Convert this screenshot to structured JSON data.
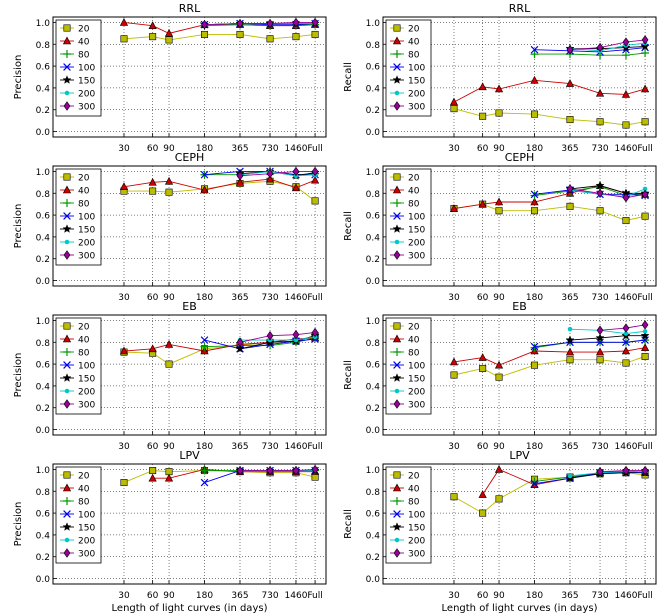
{
  "figure": {
    "xlabel": "Length of light curves (in days)"
  },
  "colors": {
    "20": "#bdbd00",
    "40": "#cc0000",
    "80": "#009900",
    "100": "#0000ee",
    "150": "#000000",
    "200": "#00c8c8",
    "300": "#990099"
  },
  "chart_data": [
    {
      "type": "line",
      "title": "RRL",
      "ylabel": "Precision",
      "xlabel": "",
      "categories": [
        "30",
        "60",
        "90",
        "180",
        "365",
        "730",
        "1460",
        "Full"
      ],
      "x": [
        30,
        60,
        90,
        180,
        365,
        730,
        1460,
        2500
      ],
      "ylim": [
        -0.05,
        1.05
      ],
      "yticks": [
        "0.0",
        "0.2",
        "0.4",
        "0.6",
        "0.8",
        "1.0"
      ],
      "grid": true,
      "legend": "upper-left",
      "series": [
        {
          "name": "20",
          "values": [
            0.85,
            0.87,
            0.84,
            0.89,
            0.89,
            0.85,
            0.87,
            0.89
          ]
        },
        {
          "name": "40",
          "values": [
            1.0,
            0.97,
            0.9,
            0.98,
            0.98,
            0.97,
            0.97,
            0.98
          ]
        },
        {
          "name": "80",
          "values": [
            null,
            null,
            null,
            0.97,
            0.98,
            0.97,
            0.98,
            0.98
          ]
        },
        {
          "name": "100",
          "values": [
            null,
            null,
            null,
            0.98,
            0.99,
            0.98,
            0.98,
            0.99
          ]
        },
        {
          "name": "150",
          "values": [
            null,
            null,
            null,
            0.98,
            0.99,
            0.99,
            0.99,
            0.99
          ]
        },
        {
          "name": "200",
          "values": [
            null,
            null,
            null,
            0.98,
            0.99,
            0.99,
            0.99,
            0.99
          ]
        },
        {
          "name": "300",
          "values": [
            null,
            null,
            null,
            0.98,
            0.99,
            0.99,
            1.0,
            1.0
          ]
        }
      ]
    },
    {
      "type": "line",
      "title": "RRL",
      "ylabel": "Recall",
      "xlabel": "",
      "categories": [
        "30",
        "60",
        "90",
        "180",
        "365",
        "730",
        "1460",
        "Full"
      ],
      "x": [
        30,
        60,
        90,
        180,
        365,
        730,
        1460,
        2500
      ],
      "ylim": [
        -0.05,
        1.05
      ],
      "yticks": [
        "0.0",
        "0.2",
        "0.4",
        "0.6",
        "0.8",
        "1.0"
      ],
      "grid": true,
      "legend": "upper-left",
      "series": [
        {
          "name": "20",
          "values": [
            0.21,
            0.14,
            0.17,
            0.16,
            0.11,
            0.09,
            0.06,
            0.09
          ]
        },
        {
          "name": "40",
          "values": [
            0.27,
            0.41,
            0.39,
            0.47,
            0.44,
            0.35,
            0.34,
            0.39
          ]
        },
        {
          "name": "80",
          "values": [
            null,
            null,
            null,
            0.71,
            0.71,
            0.7,
            0.7,
            0.72
          ]
        },
        {
          "name": "100",
          "values": [
            null,
            null,
            null,
            0.75,
            0.74,
            0.73,
            0.75,
            0.77
          ]
        },
        {
          "name": "150",
          "values": [
            null,
            null,
            null,
            null,
            0.76,
            0.76,
            0.77,
            0.78
          ]
        },
        {
          "name": "200",
          "values": [
            null,
            null,
            null,
            null,
            0.76,
            0.74,
            0.79,
            0.81
          ]
        },
        {
          "name": "300",
          "values": [
            null,
            null,
            null,
            null,
            0.75,
            0.77,
            0.82,
            0.84
          ]
        }
      ]
    },
    {
      "type": "line",
      "title": "CEPH",
      "ylabel": "Precision",
      "xlabel": "",
      "categories": [
        "30",
        "60",
        "90",
        "180",
        "365",
        "730",
        "1460",
        "Full"
      ],
      "x": [
        30,
        60,
        90,
        180,
        365,
        730,
        1460,
        2500
      ],
      "ylim": [
        -0.05,
        1.05
      ],
      "yticks": [
        "0.0",
        "0.2",
        "0.4",
        "0.6",
        "0.8",
        "1.0"
      ],
      "grid": true,
      "legend": "upper-left",
      "series": [
        {
          "name": "20",
          "values": [
            0.82,
            0.82,
            0.81,
            0.84,
            0.89,
            0.91,
            0.86,
            0.73
          ]
        },
        {
          "name": "40",
          "values": [
            0.86,
            0.9,
            0.91,
            0.83,
            0.9,
            0.93,
            0.85,
            0.92
          ]
        },
        {
          "name": "80",
          "values": [
            null,
            null,
            null,
            0.97,
            0.97,
            1.0,
            0.97,
            0.98
          ]
        },
        {
          "name": "100",
          "values": [
            null,
            null,
            null,
            0.97,
            1.0,
            1.0,
            0.97,
            0.97
          ]
        },
        {
          "name": "150",
          "values": [
            null,
            null,
            null,
            null,
            0.98,
            1.0,
            0.96,
            0.99
          ]
        },
        {
          "name": "200",
          "values": [
            null,
            null,
            null,
            null,
            0.97,
            1.0,
            0.96,
            0.97
          ]
        },
        {
          "name": "300",
          "values": [
            null,
            null,
            null,
            null,
            0.96,
            0.98,
            1.0,
            1.0
          ]
        }
      ]
    },
    {
      "type": "line",
      "title": "CEPH",
      "ylabel": "Recall",
      "xlabel": "",
      "categories": [
        "30",
        "60",
        "90",
        "180",
        "365",
        "730",
        "1460",
        "Full"
      ],
      "x": [
        30,
        60,
        90,
        180,
        365,
        730,
        1460,
        2500
      ],
      "ylim": [
        -0.05,
        1.05
      ],
      "yticks": [
        "0.0",
        "0.2",
        "0.4",
        "0.6",
        "0.8",
        "1.0"
      ],
      "grid": true,
      "legend": "upper-left",
      "series": [
        {
          "name": "20",
          "values": [
            0.66,
            0.7,
            0.64,
            0.64,
            0.68,
            0.64,
            0.55,
            0.59
          ]
        },
        {
          "name": "40",
          "values": [
            0.66,
            0.7,
            0.72,
            0.72,
            0.8,
            0.87,
            0.8,
            0.79
          ]
        },
        {
          "name": "80",
          "values": [
            null,
            null,
            null,
            0.78,
            0.82,
            0.86,
            0.78,
            0.8
          ]
        },
        {
          "name": "100",
          "values": [
            null,
            null,
            null,
            0.79,
            0.83,
            0.79,
            0.79,
            0.78
          ]
        },
        {
          "name": "150",
          "values": [
            null,
            null,
            null,
            null,
            0.84,
            0.87,
            0.8,
            0.8
          ]
        },
        {
          "name": "200",
          "values": [
            null,
            null,
            null,
            null,
            0.83,
            0.79,
            0.77,
            0.84
          ]
        },
        {
          "name": "300",
          "values": [
            null,
            null,
            null,
            null,
            0.84,
            0.8,
            0.76,
            0.79
          ]
        }
      ]
    },
    {
      "type": "line",
      "title": "EB",
      "ylabel": "Precision",
      "xlabel": "",
      "categories": [
        "30",
        "60",
        "90",
        "180",
        "365",
        "730",
        "1460",
        "Full"
      ],
      "x": [
        30,
        60,
        90,
        180,
        365,
        730,
        1460,
        2500
      ],
      "ylim": [
        -0.05,
        1.05
      ],
      "yticks": [
        "0.0",
        "0.2",
        "0.4",
        "0.6",
        "0.8",
        "1.0"
      ],
      "grid": true,
      "legend": "upper-left",
      "series": [
        {
          "name": "20",
          "values": [
            0.71,
            0.7,
            0.6,
            0.74,
            0.77,
            0.8,
            0.81,
            0.86
          ]
        },
        {
          "name": "40",
          "values": [
            0.72,
            0.74,
            0.78,
            0.72,
            0.78,
            0.8,
            0.83,
            0.84
          ]
        },
        {
          "name": "80",
          "values": [
            null,
            null,
            null,
            0.76,
            0.77,
            0.77,
            0.8,
            0.84
          ]
        },
        {
          "name": "100",
          "values": [
            null,
            null,
            null,
            0.82,
            0.74,
            0.78,
            0.81,
            0.83
          ]
        },
        {
          "name": "150",
          "values": [
            null,
            null,
            null,
            null,
            0.74,
            0.8,
            0.81,
            0.86
          ]
        },
        {
          "name": "200",
          "values": [
            null,
            null,
            null,
            null,
            0.82,
            0.82,
            0.82,
            0.85
          ]
        },
        {
          "name": "300",
          "values": [
            null,
            null,
            null,
            null,
            0.8,
            0.86,
            0.87,
            0.89
          ]
        }
      ]
    },
    {
      "type": "line",
      "title": "EB",
      "ylabel": "Recall",
      "xlabel": "",
      "categories": [
        "30",
        "60",
        "90",
        "180",
        "365",
        "730",
        "1460",
        "Full"
      ],
      "x": [
        30,
        60,
        90,
        180,
        365,
        730,
        1460,
        2500
      ],
      "ylim": [
        -0.05,
        1.05
      ],
      "yticks": [
        "0.0",
        "0.2",
        "0.4",
        "0.6",
        "0.8",
        "1.0"
      ],
      "grid": true,
      "legend": "upper-left",
      "series": [
        {
          "name": "20",
          "values": [
            0.5,
            0.56,
            0.48,
            0.59,
            0.64,
            0.64,
            0.61,
            0.67
          ]
        },
        {
          "name": "40",
          "values": [
            0.62,
            0.66,
            0.59,
            0.72,
            0.71,
            0.71,
            0.72,
            0.75
          ]
        },
        {
          "name": "80",
          "values": [
            null,
            null,
            null,
            0.75,
            0.8,
            0.8,
            0.8,
            0.82
          ]
        },
        {
          "name": "100",
          "values": [
            null,
            null,
            null,
            0.76,
            0.8,
            0.8,
            0.8,
            0.82
          ]
        },
        {
          "name": "150",
          "values": [
            null,
            null,
            null,
            null,
            0.82,
            0.84,
            0.86,
            0.86
          ]
        },
        {
          "name": "200",
          "values": [
            null,
            null,
            null,
            null,
            0.92,
            0.91,
            0.88,
            0.9
          ]
        },
        {
          "name": "300",
          "values": [
            null,
            null,
            null,
            null,
            null,
            0.91,
            0.93,
            0.96
          ]
        }
      ]
    },
    {
      "type": "line",
      "title": "LPV",
      "ylabel": "Precision",
      "xlabel": "Length of light curves (in days)",
      "categories": [
        "30",
        "60",
        "90",
        "180",
        "365",
        "730",
        "1460",
        "Full"
      ],
      "x": [
        30,
        60,
        90,
        180,
        365,
        730,
        1460,
        2500
      ],
      "ylim": [
        -0.05,
        1.05
      ],
      "yticks": [
        "0.0",
        "0.2",
        "0.4",
        "0.6",
        "0.8",
        "1.0"
      ],
      "grid": true,
      "legend": "upper-left",
      "series": [
        {
          "name": "20",
          "values": [
            0.88,
            0.99,
            0.98,
            0.99,
            0.98,
            0.97,
            0.97,
            0.93
          ]
        },
        {
          "name": "40",
          "values": [
            null,
            0.92,
            0.92,
            1.0,
            0.98,
            0.98,
            0.98,
            0.98
          ]
        },
        {
          "name": "80",
          "values": [
            null,
            null,
            null,
            0.99,
            0.99,
            0.99,
            0.99,
            0.99
          ]
        },
        {
          "name": "100",
          "values": [
            null,
            null,
            null,
            0.88,
            0.99,
            0.99,
            0.99,
            0.99
          ]
        },
        {
          "name": "150",
          "values": [
            null,
            null,
            null,
            null,
            0.99,
            0.99,
            0.99,
            0.99
          ]
        },
        {
          "name": "200",
          "values": [
            null,
            null,
            null,
            null,
            0.99,
            0.99,
            0.99,
            0.99
          ]
        },
        {
          "name": "300",
          "values": [
            null,
            null,
            null,
            null,
            0.99,
            0.99,
            0.99,
            1.0
          ]
        }
      ]
    },
    {
      "type": "line",
      "title": "LPV",
      "ylabel": "Recall",
      "xlabel": "Length of light curves (in days)",
      "categories": [
        "30",
        "60",
        "90",
        "180",
        "365",
        "730",
        "1460",
        "Full"
      ],
      "x": [
        30,
        60,
        90,
        180,
        365,
        730,
        1460,
        2500
      ],
      "ylim": [
        -0.05,
        1.05
      ],
      "yticks": [
        "0.0",
        "0.2",
        "0.4",
        "0.6",
        "0.8",
        "1.0"
      ],
      "grid": true,
      "legend": "upper-left",
      "series": [
        {
          "name": "20",
          "values": [
            0.75,
            0.6,
            0.73,
            0.91,
            0.93,
            0.96,
            0.97,
            0.95
          ]
        },
        {
          "name": "40",
          "values": [
            null,
            0.77,
            1.0,
            0.86,
            0.92,
            0.97,
            0.99,
            0.97
          ]
        },
        {
          "name": "80",
          "values": [
            null,
            null,
            null,
            0.89,
            0.93,
            0.97,
            0.98,
            0.98
          ]
        },
        {
          "name": "100",
          "values": [
            null,
            null,
            null,
            0.87,
            0.92,
            0.97,
            0.97,
            0.97
          ]
        },
        {
          "name": "150",
          "values": [
            null,
            null,
            null,
            null,
            0.92,
            0.96,
            0.97,
            0.98
          ]
        },
        {
          "name": "200",
          "values": [
            null,
            null,
            null,
            null,
            0.94,
            0.97,
            0.98,
            0.98
          ]
        },
        {
          "name": "300",
          "values": [
            null,
            null,
            null,
            null,
            null,
            0.98,
            0.99,
            0.99
          ]
        }
      ]
    }
  ]
}
